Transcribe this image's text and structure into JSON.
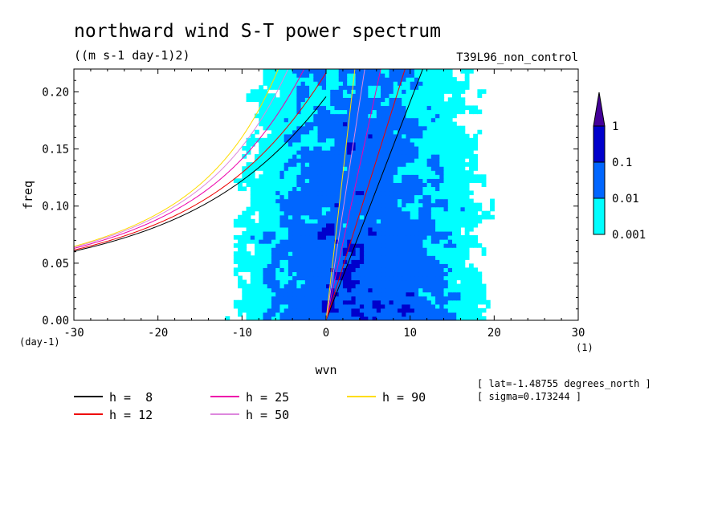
{
  "chart_data": {
    "type": "heatmap",
    "title": "northward wind S-T power spectrum",
    "units": "((m s-1 day-1)2)",
    "run_label": "T39L96_non_control",
    "xlabel": "wvn",
    "ylabel": "freq",
    "x_unit": "(1)",
    "y_unit": "(day-1)",
    "xlim": [
      -30,
      30
    ],
    "ylim": [
      0,
      0.22
    ],
    "x_ticks": [
      -30,
      -20,
      -10,
      0,
      10,
      20,
      30
    ],
    "x_tick_labels": [
      "-30",
      "-20",
      "-10",
      "0",
      "10",
      "20",
      "30"
    ],
    "y_ticks": [
      0,
      0.05,
      0.1,
      0.15,
      0.2
    ],
    "y_tick_labels": [
      "0.00",
      "0.05",
      "0.10",
      "0.15",
      "0.20"
    ],
    "color_levels": [
      0.001,
      0.01,
      0.1,
      1
    ],
    "color_labels": [
      "0.001",
      "0.01",
      "0.1",
      "1"
    ],
    "colors": [
      "#00ffff",
      "#0066ff",
      "#0000cc",
      "#440099"
    ],
    "info_lines": [
      "[ lat=-1.48755 degrees_north ]",
      "[ sigma=0.173244 ]"
    ],
    "dispersion_curves": [
      {
        "label": "h =  8",
        "h": 8,
        "color": "#000000"
      },
      {
        "label": "h = 12",
        "h": 12,
        "color": "#ee0000"
      },
      {
        "label": "h = 25",
        "h": 25,
        "color": "#ee00aa"
      },
      {
        "label": "h = 50",
        "h": 50,
        "color": "#dd88dd"
      },
      {
        "label": "h = 90",
        "h": 90,
        "color": "#ffdd00"
      }
    ]
  }
}
